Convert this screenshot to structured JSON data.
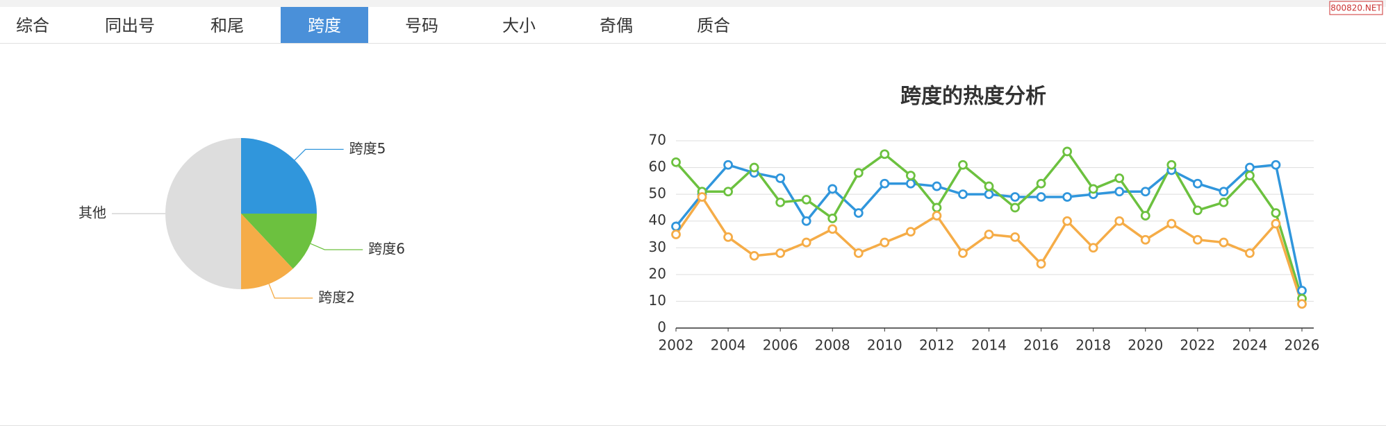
{
  "tabs": [
    "综合",
    "同出号",
    "和尾",
    "跨度",
    "号码",
    "大小",
    "奇偶",
    "质合"
  ],
  "active_tab": 3,
  "watermark": "800820.NET",
  "chart_data": [
    {
      "type": "pie",
      "categories": [
        "跨度5",
        "跨度6",
        "跨度2",
        "其他"
      ],
      "values": [
        25,
        13,
        12,
        50
      ],
      "colors": [
        "#3096dc",
        "#6cc13f",
        "#f5ac47",
        "#dddddd"
      ]
    },
    {
      "type": "line",
      "title": "跨度的热度分析",
      "x": [
        2002,
        2003,
        2004,
        2005,
        2006,
        2007,
        2008,
        2009,
        2010,
        2011,
        2012,
        2013,
        2014,
        2015,
        2016,
        2017,
        2018,
        2019,
        2020,
        2021,
        2022,
        2023,
        2024,
        2025,
        2026
      ],
      "xlim": [
        2002,
        2026
      ],
      "xticks": [
        2002,
        2004,
        2006,
        2008,
        2010,
        2012,
        2014,
        2016,
        2018,
        2020,
        2022,
        2024,
        2026
      ],
      "ylim": [
        0,
        70
      ],
      "yticks": [
        0,
        10,
        20,
        30,
        40,
        50,
        60,
        70
      ],
      "grid": true,
      "series": [
        {
          "color": "#3096dc",
          "values": [
            38,
            50,
            61,
            58,
            56,
            40,
            52,
            43,
            54,
            54,
            53,
            50,
            50,
            49,
            49,
            49,
            50,
            51,
            51,
            59,
            54,
            51,
            60,
            61,
            14
          ]
        },
        {
          "color": "#6cc13f",
          "values": [
            62,
            51,
            51,
            60,
            47,
            48,
            41,
            58,
            65,
            57,
            45,
            61,
            53,
            45,
            54,
            66,
            52,
            56,
            42,
            61,
            44,
            47,
            57,
            43,
            11
          ]
        },
        {
          "color": "#f5ac47",
          "values": [
            35,
            49,
            34,
            27,
            28,
            32,
            37,
            28,
            32,
            36,
            42,
            28,
            35,
            34,
            24,
            40,
            30,
            40,
            33,
            39,
            33,
            32,
            28,
            39,
            9
          ]
        }
      ]
    }
  ]
}
